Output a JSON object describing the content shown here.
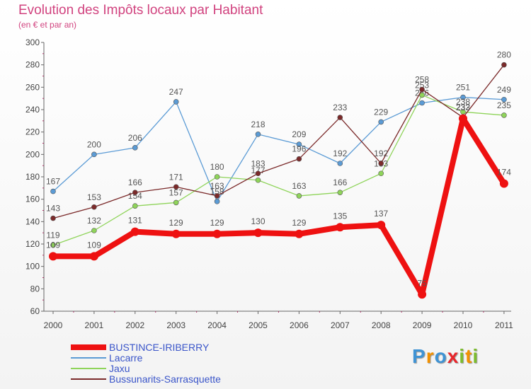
{
  "title": "Evolution des Impôts locaux par Habitant",
  "subtitle": "(en € et par an)",
  "brand": {
    "text": "Proxiti",
    "letters": [
      "P",
      "r",
      "o",
      "x",
      "i",
      "t",
      "i"
    ],
    "colors": [
      "#3f93d4",
      "#f29100",
      "#3f93d4",
      "#e8262b",
      "#7cbc2e",
      "#f29100",
      "#7cbc2e"
    ]
  },
  "chart_data": {
    "type": "line",
    "categories": [
      "2000",
      "2001",
      "2002",
      "2003",
      "2004",
      "2005",
      "2006",
      "2007",
      "2008",
      "2009",
      "2010",
      "2011"
    ],
    "ylim": [
      60,
      300
    ],
    "yticks": [
      60,
      80,
      100,
      120,
      140,
      160,
      180,
      200,
      220,
      240,
      260,
      280,
      300
    ],
    "xlabel": "",
    "ylabel": "",
    "grid": false,
    "legend_position": "bottom-left",
    "series": [
      {
        "name": "Lacarre",
        "color": "#5b9bd5",
        "values": [
          167,
          200,
          206,
          247,
          158,
          218,
          209,
          192,
          229,
          246,
          251,
          249
        ],
        "labels": [
          "167",
          "200",
          "206",
          "247",
          "158",
          "218",
          "209",
          "192",
          "229",
          "246",
          "251",
          "249"
        ]
      },
      {
        "name": "Jaxu",
        "color": "#8fd45a",
        "values": [
          119,
          132,
          154,
          157,
          180,
          177,
          163,
          166,
          183,
          253,
          238,
          235
        ],
        "labels": [
          "119",
          "132",
          "154",
          "157",
          "180",
          "177",
          "163",
          "166",
          "183",
          "253",
          "238",
          "235"
        ]
      },
      {
        "name": "Bussunarits-Sarrasquette",
        "color": "#7b2a2a",
        "values": [
          143,
          153,
          166,
          171,
          163,
          183,
          196,
          233,
          192,
          258,
          233,
          280
        ],
        "labels": [
          "143",
          "153",
          "166",
          "171",
          "163",
          "183",
          "196",
          "233",
          "192",
          "258",
          "233",
          "280"
        ]
      },
      {
        "name": "BUSTINCE-IRIBERRY",
        "color": "#ee1111",
        "values": [
          109,
          109,
          131,
          129,
          129,
          130,
          129,
          135,
          137,
          75,
          232,
          174
        ],
        "labels": [
          "109",
          "109",
          "131",
          "129",
          "129",
          "130",
          "129",
          "135",
          "137",
          "75",
          "232",
          "174"
        ]
      }
    ],
    "legend_order": [
      "BUSTINCE-IRIBERRY",
      "Lacarre",
      "Jaxu",
      "Bussunarits-Sarrasquette"
    ]
  }
}
